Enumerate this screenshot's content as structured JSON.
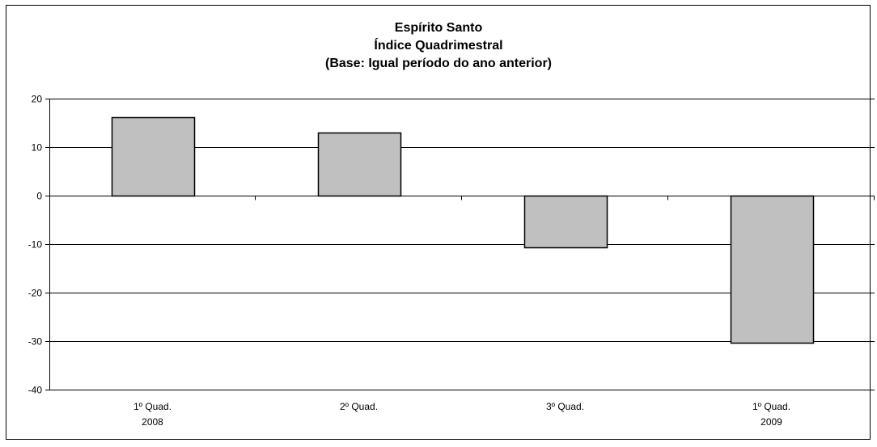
{
  "chart_data": {
    "type": "bar",
    "title_lines": [
      "Espírito Santo",
      "Índice Quadrimestral",
      "(Base: Igual período do ano anterior)"
    ],
    "categories": [
      [
        "1º Quad.",
        "2008"
      ],
      [
        "2º Quad."
      ],
      [
        "3º Quad."
      ],
      [
        "1º Quad.",
        "2009"
      ]
    ],
    "values": [
      16.2,
      13.0,
      -10.7,
      -30.3
    ],
    "ylim": [
      -40,
      20
    ],
    "yticks": [
      20,
      10,
      0,
      -10,
      -20,
      -30,
      -40
    ],
    "grid": true,
    "legend": "none",
    "colors": {
      "bar_fill": "#c0c0c0",
      "bar_stroke": "#000000",
      "grid": "#000000"
    }
  }
}
